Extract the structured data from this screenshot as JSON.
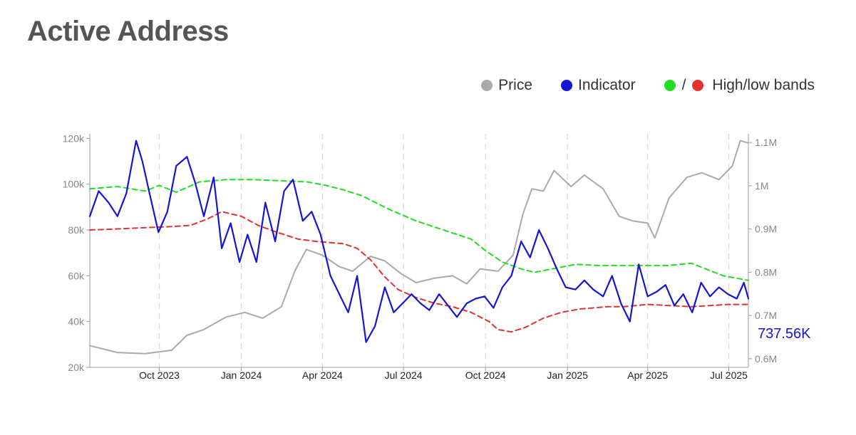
{
  "title": "Active Address",
  "legend": {
    "price_label": "Price",
    "indicator_label": "Indicator",
    "bands_label": "High/low bands",
    "bands_separator": "/"
  },
  "colors": {
    "price": "#aaaaaa",
    "indicator": "#1515d6",
    "high_band": "#22dd22",
    "low_band": "#e53030",
    "last_value": "#1515d6"
  },
  "last_value_label": "737.56K",
  "chart_data": {
    "type": "line",
    "title": "Active Address",
    "x_ticks": [
      "Oct 2023",
      "Jan 2024",
      "Apr 2024",
      "Jul 2024",
      "Oct 2024",
      "Jan 2025",
      "Apr 2025",
      "Jul 2025"
    ],
    "left_axis": {
      "ticks": [
        "20k",
        "40k",
        "60k",
        "80k",
        "100k",
        "120k"
      ],
      "ylim": [
        20000,
        122000
      ]
    },
    "right_axis": {
      "ticks": [
        "0.6M",
        "0.7M",
        "0.8M",
        "0.9M",
        "1M",
        "1.1M"
      ],
      "ylim": [
        580000,
        1120000
      ]
    },
    "grid": {
      "vertical_dashed": true,
      "horizontal": false
    },
    "legend_position": "top-right",
    "x_range": [
      "2023-07-15",
      "2025-07-23"
    ],
    "series": [
      {
        "name": "Price",
        "axis": "left",
        "x": [
          "2023-07-15",
          "2023-08-15",
          "2023-09-15",
          "2023-10-15",
          "2023-11-01",
          "2023-11-20",
          "2023-12-15",
          "2024-01-05",
          "2024-01-25",
          "2024-02-15",
          "2024-03-01",
          "2024-03-14",
          "2024-04-01",
          "2024-04-20",
          "2024-05-05",
          "2024-05-25",
          "2024-06-10",
          "2024-06-28",
          "2024-07-15",
          "2024-08-05",
          "2024-08-25",
          "2024-09-10",
          "2024-09-25",
          "2024-10-15",
          "2024-11-01",
          "2024-11-12",
          "2024-11-22",
          "2024-12-05",
          "2024-12-17",
          "2025-01-05",
          "2025-01-20",
          "2025-02-10",
          "2025-02-28",
          "2025-03-15",
          "2025-04-01",
          "2025-04-09",
          "2025-04-25",
          "2025-05-15",
          "2025-06-01",
          "2025-06-20",
          "2025-07-05",
          "2025-07-14",
          "2025-07-23"
        ],
        "values": [
          29500,
          26500,
          26000,
          27500,
          34000,
          36500,
          42000,
          44000,
          41500,
          46500,
          62000,
          71500,
          69000,
          64000,
          62000,
          68500,
          66500,
          61000,
          57000,
          59000,
          60000,
          56500,
          63000,
          62000,
          69000,
          87000,
          98000,
          97000,
          106000,
          99000,
          104000,
          98000,
          86000,
          84000,
          83000,
          76500,
          94000,
          103000,
          105000,
          102000,
          108000,
          119000,
          118000
        ]
      },
      {
        "name": "Indicator",
        "axis": "left",
        "x": [
          "2023-07-15",
          "2023-07-25",
          "2023-08-05",
          "2023-08-15",
          "2023-08-25",
          "2023-09-05",
          "2023-09-12",
          "2023-09-20",
          "2023-09-30",
          "2023-10-10",
          "2023-10-20",
          "2023-11-01",
          "2023-11-10",
          "2023-11-20",
          "2023-12-01",
          "2023-12-10",
          "2023-12-20",
          "2023-12-30",
          "2024-01-08",
          "2024-01-18",
          "2024-01-28",
          "2024-02-08",
          "2024-02-18",
          "2024-02-28",
          "2024-03-10",
          "2024-03-20",
          "2024-03-30",
          "2024-04-10",
          "2024-04-20",
          "2024-04-30",
          "2024-05-10",
          "2024-05-20",
          "2024-05-30",
          "2024-06-10",
          "2024-06-20",
          "2024-06-30",
          "2024-07-10",
          "2024-07-20",
          "2024-07-30",
          "2024-08-10",
          "2024-08-20",
          "2024-08-30",
          "2024-09-10",
          "2024-09-20",
          "2024-09-30",
          "2024-10-10",
          "2024-10-20",
          "2024-10-30",
          "2024-11-10",
          "2024-11-20",
          "2024-11-30",
          "2024-12-10",
          "2024-12-20",
          "2024-12-30",
          "2025-01-10",
          "2025-01-20",
          "2025-01-30",
          "2025-02-10",
          "2025-02-20",
          "2025-03-02",
          "2025-03-12",
          "2025-03-22",
          "2025-04-01",
          "2025-04-11",
          "2025-04-21",
          "2025-05-01",
          "2025-05-11",
          "2025-05-21",
          "2025-05-31",
          "2025-06-10",
          "2025-06-20",
          "2025-06-30",
          "2025-07-10",
          "2025-07-18",
          "2025-07-23"
        ],
        "values": [
          86000,
          97000,
          92000,
          86000,
          96000,
          119000,
          110000,
          96000,
          79000,
          88000,
          108000,
          112000,
          101000,
          86000,
          103000,
          72000,
          83000,
          66000,
          78000,
          66000,
          92000,
          75000,
          97000,
          102000,
          84000,
          88000,
          78000,
          60000,
          52000,
          44000,
          60000,
          31000,
          38000,
          55000,
          44000,
          48000,
          52000,
          48000,
          45000,
          52000,
          47000,
          42000,
          48000,
          50000,
          51000,
          46000,
          55000,
          60000,
          75000,
          68000,
          80000,
          72000,
          63000,
          55000,
          54000,
          58000,
          54000,
          51000,
          60000,
          48000,
          40000,
          65000,
          51000,
          53000,
          56000,
          47000,
          52000,
          44000,
          57000,
          51000,
          55000,
          52000,
          50000,
          57000,
          50000
        ]
      },
      {
        "name": "High band",
        "axis": "left",
        "x": [
          "2023-07-15",
          "2023-08-15",
          "2023-09-15",
          "2023-10-01",
          "2023-10-20",
          "2023-11-15",
          "2023-12-15",
          "2024-01-15",
          "2024-02-15",
          "2024-03-15",
          "2024-04-05",
          "2024-04-25",
          "2024-05-15",
          "2024-06-15",
          "2024-07-15",
          "2024-08-15",
          "2024-09-15",
          "2024-10-01",
          "2024-10-20",
          "2024-11-10",
          "2024-11-25",
          "2024-12-15",
          "2025-01-10",
          "2025-02-05",
          "2025-03-05",
          "2025-04-01",
          "2025-04-25",
          "2025-05-20",
          "2025-06-05",
          "2025-06-25",
          "2025-07-23"
        ],
        "values": [
          98000,
          99000,
          97000,
          99500,
          96500,
          101000,
          102000,
          102000,
          101500,
          101000,
          99500,
          97500,
          95000,
          89000,
          84000,
          80000,
          76000,
          71000,
          66000,
          63000,
          61500,
          63000,
          65000,
          64500,
          64500,
          64500,
          64500,
          65500,
          63000,
          60000,
          58000
        ]
      },
      {
        "name": "Low band",
        "axis": "left",
        "x": [
          "2023-07-15",
          "2023-08-15",
          "2023-09-15",
          "2023-10-15",
          "2023-11-05",
          "2023-11-25",
          "2023-12-10",
          "2024-01-01",
          "2024-01-20",
          "2024-02-10",
          "2024-03-05",
          "2024-03-25",
          "2024-04-10",
          "2024-04-25",
          "2024-05-10",
          "2024-05-25",
          "2024-06-10",
          "2024-06-25",
          "2024-07-15",
          "2024-08-05",
          "2024-08-25",
          "2024-09-15",
          "2024-10-05",
          "2024-10-15",
          "2024-10-30",
          "2024-11-15",
          "2024-12-05",
          "2024-12-25",
          "2025-01-15",
          "2025-02-15",
          "2025-03-05",
          "2025-04-01",
          "2025-04-25",
          "2025-05-20",
          "2025-06-10",
          "2025-06-30",
          "2025-07-23"
        ],
        "values": [
          80000,
          80500,
          81000,
          81500,
          82000,
          85000,
          88000,
          86000,
          82000,
          79000,
          76000,
          75000,
          74500,
          74000,
          72000,
          67000,
          59500,
          54000,
          50500,
          48000,
          46500,
          44000,
          40000,
          36500,
          35500,
          37500,
          41500,
          44000,
          45500,
          46500,
          46500,
          47500,
          47000,
          46500,
          47000,
          47500,
          47500
        ]
      }
    ]
  }
}
